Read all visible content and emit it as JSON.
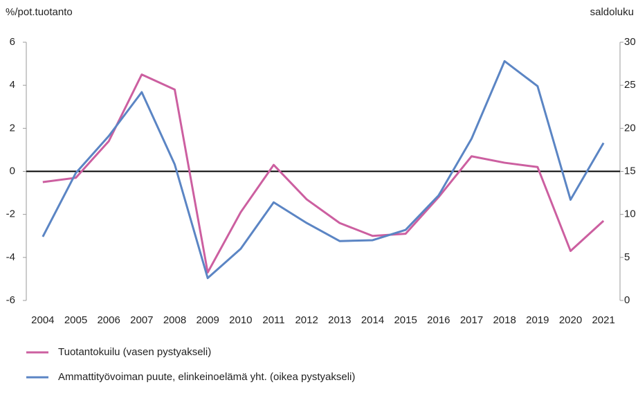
{
  "chart_data": {
    "type": "line",
    "ylabel": "%/pot.tuotanto",
    "y2label": "saldoluku",
    "categories": [
      "2004",
      "2005",
      "2006",
      "2007",
      "2008",
      "2009",
      "2010",
      "2011",
      "2012",
      "2013",
      "2014",
      "2015",
      "2016",
      "2017",
      "2018",
      "2019",
      "2020",
      "2021"
    ],
    "series": [
      {
        "name": "Tuotantokuilu (vasen pystyakseli)",
        "color": "#cc5fa0",
        "axis": "y",
        "values": [
          -0.5,
          -0.3,
          1.4,
          4.5,
          3.8,
          -4.7,
          -1.9,
          0.3,
          -1.3,
          -2.4,
          -3.0,
          -2.9,
          -1.2,
          0.7,
          0.4,
          0.2,
          -3.7,
          -2.3
        ]
      },
      {
        "name": "Ammattityövoiman puute, elinkeinoelämä yht. (oikea pystyakseli)",
        "color": "#5b85c4",
        "axis": "y2",
        "values": [
          7.4,
          14.8,
          19.1,
          24.2,
          15.8,
          2.6,
          6.0,
          11.4,
          9.0,
          6.9,
          7.0,
          8.2,
          12.2,
          18.8,
          27.8,
          24.9,
          11.7,
          18.3
        ]
      }
    ],
    "ylim": [
      -6,
      6
    ],
    "yticks": [
      -6,
      -4,
      -2,
      0,
      2,
      4,
      6
    ],
    "y2lim": [
      0,
      30
    ],
    "y2ticks": [
      0,
      5,
      10,
      15,
      20,
      25,
      30
    ],
    "zero_line": true
  }
}
